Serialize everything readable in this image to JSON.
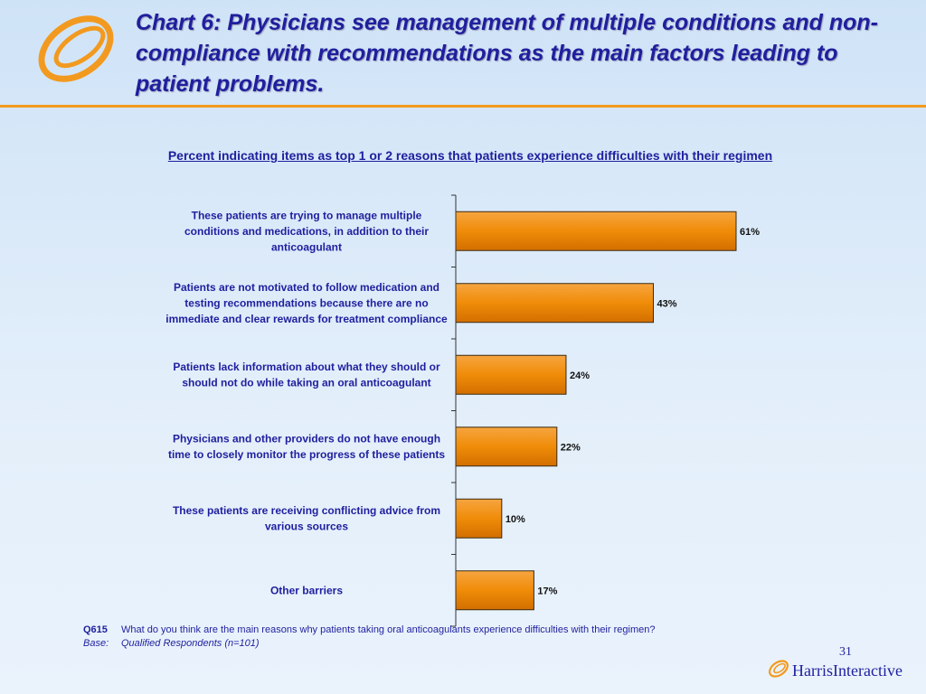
{
  "slide": {
    "title": "Chart 6: Physicians see management of multiple conditions and non-compliance with recommendations as the main factors leading to patient problems.",
    "page_number": "31",
    "brand": {
      "name_part1": "Harris",
      "name_part2": "Interactive"
    }
  },
  "colors": {
    "title": "#1f1f9e",
    "accent": "#f29a1f",
    "bar": "#f0900a",
    "background": "#dcebf9"
  },
  "footnote": {
    "q_code": "Q615",
    "question": "What do you think are the main reasons why patients taking oral anticoagulants experience difficulties with their regimen?",
    "base_label": "Base:",
    "base_text": "Qualified Respondents (n=101)"
  },
  "chart_data": {
    "type": "bar",
    "orientation": "horizontal",
    "title": "Percent indicating items as top 1 or 2 reasons that patients experience difficulties with their regimen",
    "categories": [
      [
        "These patients are trying to manage multiple",
        "conditions and medications, in addition to their",
        "anticoagulant"
      ],
      [
        "Patients are not motivated to follow medication and",
        "testing recommendations because there are no",
        "immediate and clear rewards for treatment compliance"
      ],
      [
        "Patients lack information about what they should or",
        "should not do while taking an oral anticoagulant"
      ],
      [
        "Physicians and other providers do not have enough",
        "time to closely monitor the progress of these patients"
      ],
      [
        "These patients are receiving conflicting advice from",
        "various sources"
      ],
      [
        "Other barriers"
      ]
    ],
    "values": [
      61,
      43,
      24,
      22,
      10,
      17
    ],
    "value_labels": [
      "61%",
      "43%",
      "24%",
      "22%",
      "10%",
      "17%"
    ],
    "xlim": [
      0,
      100
    ],
    "grid": false,
    "legend": "none"
  }
}
